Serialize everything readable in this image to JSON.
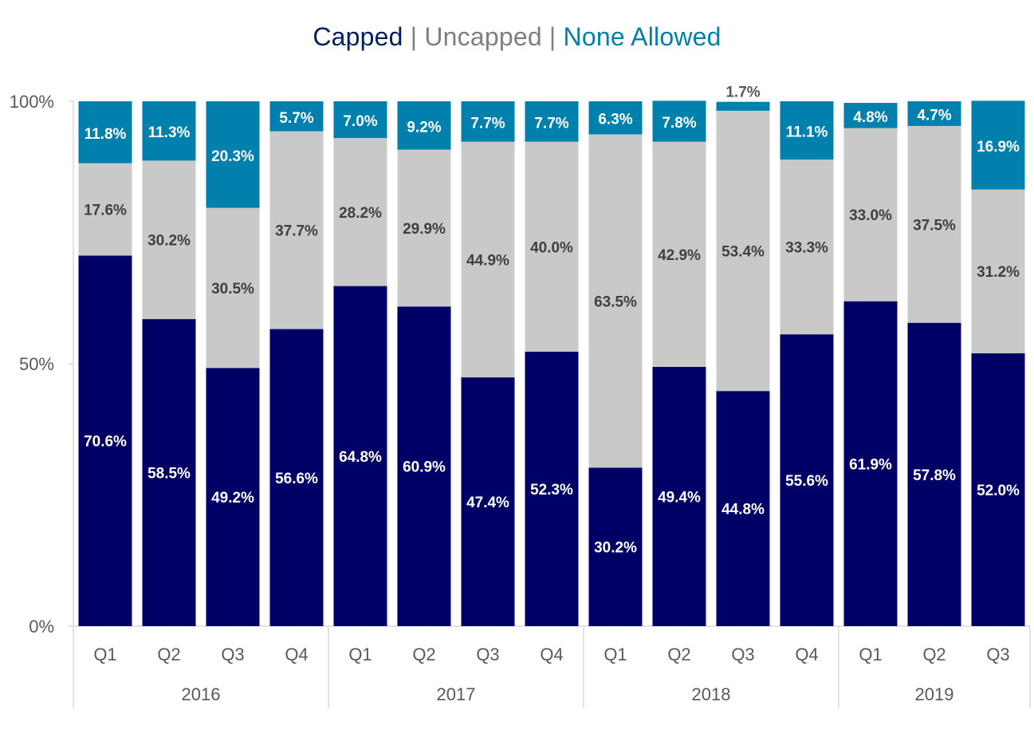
{
  "legend": {
    "capped_label": "Capped",
    "uncapped_label": "Uncapped",
    "none_label": "None Allowed",
    "separator": " | "
  },
  "chart_data": {
    "type": "bar",
    "stacked": true,
    "title": "",
    "xlabel": "",
    "ylabel": "",
    "ylim": [
      0,
      100
    ],
    "y_ticks": [
      "0%",
      "50%",
      "100%"
    ],
    "categories": [
      "Q1",
      "Q2",
      "Q3",
      "Q4",
      "Q1",
      "Q2",
      "Q3",
      "Q4",
      "Q1",
      "Q2",
      "Q3",
      "Q4",
      "Q1",
      "Q2",
      "Q3"
    ],
    "groups": [
      {
        "label": "2016",
        "count": 4
      },
      {
        "label": "2017",
        "count": 4
      },
      {
        "label": "2018",
        "count": 4
      },
      {
        "label": "2019",
        "count": 3
      }
    ],
    "series": [
      {
        "name": "Capped",
        "color": "#000066",
        "values": [
          70.6,
          58.5,
          49.2,
          56.6,
          64.8,
          60.9,
          47.4,
          52.3,
          30.2,
          49.4,
          44.8,
          55.6,
          61.9,
          57.8,
          52.0
        ]
      },
      {
        "name": "Uncapped",
        "color": "#C9C9C9",
        "values": [
          17.6,
          30.2,
          30.5,
          37.7,
          28.2,
          29.9,
          44.9,
          40.0,
          63.5,
          42.9,
          53.4,
          33.3,
          33.0,
          37.5,
          31.2
        ]
      },
      {
        "name": "None Allowed",
        "color": "#0080AC",
        "values": [
          11.8,
          11.3,
          20.3,
          5.7,
          7.0,
          9.2,
          7.7,
          7.7,
          6.3,
          7.8,
          1.7,
          11.1,
          4.8,
          4.7,
          16.9
        ]
      }
    ],
    "legend_position": "top-center",
    "grid": false
  }
}
